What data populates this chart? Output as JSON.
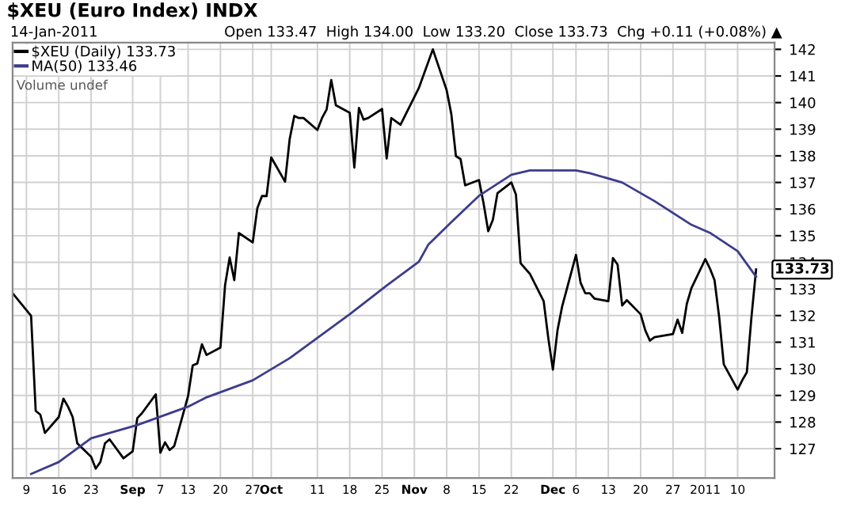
{
  "chart_data": {
    "type": "line",
    "title": "$XEU (Euro Index) INDX",
    "subtitle": "14-Jan-2011",
    "annotations": [
      "Open 133.47  High 134.00  Low 133.20  Close 133.73  Chg +0.11 (+0.08%) ▲",
      "Volume undef"
    ],
    "series": [
      {
        "name": "$XEU (Daily) 133.73",
        "color": "#000000",
        "x": [
          "2010-08-06",
          "2010-08-10",
          "2010-08-11",
          "2010-08-12",
          "2010-08-13",
          "2010-08-16",
          "2010-08-17",
          "2010-08-18",
          "2010-08-19",
          "2010-08-20",
          "2010-08-23",
          "2010-08-24",
          "2010-08-25",
          "2010-08-26",
          "2010-08-27",
          "2010-08-30",
          "2010-09-01",
          "2010-09-02",
          "2010-09-03",
          "2010-09-06",
          "2010-09-07",
          "2010-09-08",
          "2010-09-09",
          "2010-09-10",
          "2010-09-13",
          "2010-09-14",
          "2010-09-15",
          "2010-09-16",
          "2010-09-17",
          "2010-09-20",
          "2010-09-21",
          "2010-09-22",
          "2010-09-23",
          "2010-09-24",
          "2010-09-27",
          "2010-09-28",
          "2010-09-29",
          "2010-09-30",
          "2010-10-01",
          "2010-10-04",
          "2010-10-05",
          "2010-10-06",
          "2010-10-07",
          "2010-10-08",
          "2010-10-11",
          "2010-10-12",
          "2010-10-13",
          "2010-10-14",
          "2010-10-15",
          "2010-10-18",
          "2010-10-19",
          "2010-10-20",
          "2010-10-21",
          "2010-10-22",
          "2010-10-25",
          "2010-10-26",
          "2010-10-27",
          "2010-10-29",
          "2010-11-02",
          "2010-11-05",
          "2010-11-08",
          "2010-11-09",
          "2010-11-10",
          "2010-11-11",
          "2010-11-12",
          "2010-11-15",
          "2010-11-16",
          "2010-11-17",
          "2010-11-18",
          "2010-11-19",
          "2010-11-22",
          "2010-11-23",
          "2010-11-24",
          "2010-11-26",
          "2010-11-29",
          "2010-11-30",
          "2010-12-01",
          "2010-12-02",
          "2010-12-03",
          "2010-12-06",
          "2010-12-07",
          "2010-12-08",
          "2010-12-09",
          "2010-12-10",
          "2010-12-13",
          "2010-12-14",
          "2010-12-15",
          "2010-12-16",
          "2010-12-17",
          "2010-12-20",
          "2010-12-21",
          "2010-12-22",
          "2010-12-23",
          "2010-12-27",
          "2010-12-28",
          "2010-12-29",
          "2010-12-30",
          "2010-12-31",
          "2011-01-03",
          "2011-01-04",
          "2011-01-05",
          "2011-01-06",
          "2011-01-07",
          "2011-01-10",
          "2011-01-11",
          "2011-01-12",
          "2011-01-13",
          "2011-01-14"
        ],
        "values": [
          132.84,
          131.99,
          128.42,
          128.28,
          127.59,
          128.19,
          128.88,
          128.58,
          128.19,
          127.2,
          126.7,
          126.25,
          126.5,
          127.2,
          127.35,
          126.64,
          126.9,
          128.15,
          128.33,
          129.04,
          126.85,
          127.24,
          126.95,
          127.1,
          128.98,
          130.13,
          130.2,
          130.92,
          130.52,
          130.8,
          133.13,
          134.18,
          133.33,
          135.1,
          134.75,
          136.04,
          136.49,
          136.49,
          137.94,
          137.03,
          138.63,
          139.5,
          139.42,
          139.42,
          138.97,
          139.42,
          139.74,
          140.85,
          139.9,
          139.62,
          137.56,
          139.8,
          139.36,
          139.42,
          139.76,
          137.9,
          139.42,
          139.17,
          140.56,
          142.0,
          140.46,
          139.57,
          137.99,
          137.88,
          136.89,
          137.09,
          136.2,
          135.17,
          135.6,
          136.6,
          137.0,
          136.54,
          133.97,
          133.57,
          132.54,
          131.16,
          129.97,
          131.45,
          132.34,
          134.28,
          133.23,
          132.84,
          132.84,
          132.64,
          132.54,
          134.16,
          133.92,
          132.38,
          132.58,
          132.05,
          131.45,
          131.06,
          131.19,
          131.31,
          131.85,
          131.35,
          132.44,
          133.03,
          134.12,
          133.77,
          133.33,
          131.95,
          130.17,
          129.22,
          129.57,
          129.87,
          131.95,
          133.73
        ],
        "value_labels": [
          null,
          null,
          null,
          null,
          null,
          null,
          null,
          null,
          null,
          null,
          null,
          null,
          null,
          null,
          null,
          null,
          null,
          null,
          null,
          null,
          null,
          null,
          null,
          null,
          null,
          null,
          null,
          null,
          null,
          null,
          null,
          null,
          null,
          null,
          null,
          null,
          null,
          null,
          null,
          null,
          null,
          null,
          null,
          null,
          null,
          null,
          null,
          null,
          null,
          null,
          null,
          null,
          null,
          null,
          null,
          null,
          null,
          null,
          null,
          null,
          null,
          null,
          null,
          null,
          null,
          null,
          null,
          null,
          null,
          null,
          null,
          null,
          null,
          null,
          null,
          null,
          null,
          null,
          null,
          null,
          null,
          null,
          null,
          null,
          null,
          null,
          null,
          null,
          null,
          null,
          null,
          null,
          null,
          null,
          null,
          null,
          null,
          null,
          null,
          null,
          null,
          null,
          null,
          null,
          null,
          null,
          null,
          "133.73"
        ]
      },
      {
        "name": "MA(50) 133.46",
        "color": "#3c3c8c",
        "x": [
          "2010-08-10",
          "2010-08-16",
          "2010-08-23",
          "2010-09-02",
          "2010-09-13",
          "2010-09-17",
          "2010-09-27",
          "2010-10-05",
          "2010-10-18",
          "2010-10-26",
          "2010-11-02",
          "2010-11-04",
          "2010-11-09",
          "2010-11-15",
          "2010-11-22",
          "2010-11-26",
          "2010-12-06",
          "2010-12-09",
          "2010-12-16",
          "2010-12-23",
          "2010-12-31",
          "2011-01-04",
          "2011-01-10",
          "2011-01-14"
        ],
        "values": [
          126.05,
          126.5,
          127.39,
          127.89,
          128.58,
          128.93,
          129.57,
          130.4,
          132.05,
          133.13,
          134.03,
          134.66,
          135.51,
          136.5,
          137.29,
          137.45,
          137.45,
          137.35,
          137.0,
          136.3,
          135.41,
          135.11,
          134.42,
          133.46
        ]
      }
    ],
    "xlim": [
      "2010-08-06",
      "2011-01-18"
    ],
    "xticks": [
      {
        "value": "2010-08-09",
        "label": "9"
      },
      {
        "value": "2010-08-16",
        "label": "16"
      },
      {
        "value": "2010-08-23",
        "label": "23"
      },
      {
        "value": "2010-09-01",
        "label": "Sep"
      },
      {
        "value": "2010-09-07",
        "label": "7"
      },
      {
        "value": "2010-09-13",
        "label": "13"
      },
      {
        "value": "2010-09-20",
        "label": "20"
      },
      {
        "value": "2010-09-27",
        "label": "27"
      },
      {
        "value": "2010-10-01",
        "label": "Oct"
      },
      {
        "value": "2010-10-11",
        "label": "11"
      },
      {
        "value": "2010-10-18",
        "label": "18"
      },
      {
        "value": "2010-10-25",
        "label": "25"
      },
      {
        "value": "2010-11-01",
        "label": "Nov"
      },
      {
        "value": "2010-11-08",
        "label": "8"
      },
      {
        "value": "2010-11-15",
        "label": "15"
      },
      {
        "value": "2010-11-22",
        "label": "22"
      },
      {
        "value": "2010-12-01",
        "label": "Dec"
      },
      {
        "value": "2010-12-06",
        "label": "6"
      },
      {
        "value": "2010-12-13",
        "label": "13"
      },
      {
        "value": "2010-12-20",
        "label": "20"
      },
      {
        "value": "2010-12-27",
        "label": "27"
      },
      {
        "value": "2011-01-03",
        "label": "2011"
      },
      {
        "value": "2011-01-10",
        "label": "10"
      }
    ],
    "ylim": [
      125.9,
      142.25
    ],
    "yticks": [
      127,
      128,
      129,
      130,
      131,
      132,
      133,
      134,
      135,
      136,
      137,
      138,
      139,
      140,
      141,
      142
    ],
    "grid": true,
    "legend": "top left",
    "marker": "none",
    "line_style": "solid"
  }
}
